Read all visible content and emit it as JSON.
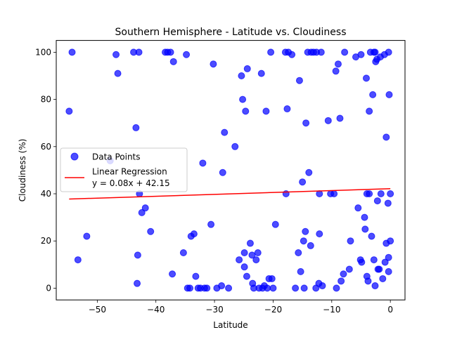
{
  "chart_data": {
    "type": "scatter",
    "title": "Southern Hemisphere - Latitude vs. Cloudiness",
    "xlabel": "Latitude",
    "ylabel": "Cloudiness (%)",
    "xlim": [
      -57,
      2.5
    ],
    "ylim": [
      -5,
      105
    ],
    "xticks": [
      -50,
      -40,
      -30,
      -20,
      -10,
      0
    ],
    "yticks": [
      0,
      20,
      40,
      60,
      80,
      100
    ],
    "grid": false,
    "legend": {
      "placement": "center-left",
      "entries": [
        {
          "label": "Data Points",
          "type": "marker"
        },
        {
          "label": "Linear Regression",
          "label2": "y = 0.08x + 42.15",
          "type": "line"
        }
      ]
    },
    "colors": {
      "points": "#0000ff",
      "regression": "#ff0000"
    },
    "regression": {
      "slope": 0.08,
      "intercept": 42.15,
      "x_range": [
        -54.8,
        0
      ]
    },
    "series": [
      {
        "name": "Data Points",
        "points": [
          [
            -54.8,
            75
          ],
          [
            -54.3,
            100
          ],
          [
            -53.3,
            12
          ],
          [
            -51.8,
            22
          ],
          [
            -47.8,
            54
          ],
          [
            -46.8,
            99
          ],
          [
            -46.5,
            91
          ],
          [
            -43.8,
            100
          ],
          [
            -43.4,
            68
          ],
          [
            -43.2,
            2
          ],
          [
            -43.1,
            14
          ],
          [
            -42.9,
            100
          ],
          [
            -42.8,
            40
          ],
          [
            -42.4,
            32
          ],
          [
            -41.8,
            34
          ],
          [
            -40.9,
            24
          ],
          [
            -38.4,
            100
          ],
          [
            -38.0,
            100
          ],
          [
            -37.5,
            100
          ],
          [
            -37.2,
            6
          ],
          [
            -37.0,
            96
          ],
          [
            -35.3,
            15
          ],
          [
            -34.8,
            99
          ],
          [
            -34.6,
            0
          ],
          [
            -34.2,
            0
          ],
          [
            -34.0,
            22
          ],
          [
            -33.5,
            23
          ],
          [
            -33.2,
            5
          ],
          [
            -32.8,
            0
          ],
          [
            -32.4,
            0
          ],
          [
            -32.0,
            53
          ],
          [
            -31.7,
            0
          ],
          [
            -31.3,
            0
          ],
          [
            -30.6,
            27
          ],
          [
            -30.2,
            95
          ],
          [
            -29.6,
            0
          ],
          [
            -28.8,
            1
          ],
          [
            -28.6,
            49
          ],
          [
            -28.3,
            66
          ],
          [
            -27.6,
            0
          ],
          [
            -26.5,
            60
          ],
          [
            -25.8,
            12
          ],
          [
            -25.4,
            90
          ],
          [
            -25.2,
            80
          ],
          [
            -24.9,
            15
          ],
          [
            -24.9,
            9
          ],
          [
            -24.7,
            75
          ],
          [
            -24.5,
            5
          ],
          [
            -24.4,
            93
          ],
          [
            -23.9,
            19
          ],
          [
            -23.6,
            14
          ],
          [
            -23.5,
            2
          ],
          [
            -23.3,
            0
          ],
          [
            -22.9,
            12
          ],
          [
            -22.6,
            15
          ],
          [
            -22.4,
            0
          ],
          [
            -22.0,
            91
          ],
          [
            -21.8,
            0
          ],
          [
            -21.5,
            1
          ],
          [
            -21.2,
            75
          ],
          [
            -21.0,
            0
          ],
          [
            -20.7,
            4
          ],
          [
            -20.4,
            100
          ],
          [
            -20.2,
            4
          ],
          [
            -20.0,
            0
          ],
          [
            -19.6,
            27
          ],
          [
            -17.9,
            100
          ],
          [
            -17.8,
            40
          ],
          [
            -17.6,
            76
          ],
          [
            -17.4,
            100
          ],
          [
            -16.8,
            99
          ],
          [
            -16.2,
            0
          ],
          [
            -15.7,
            15
          ],
          [
            -15.5,
            88
          ],
          [
            -15.3,
            7
          ],
          [
            -15.0,
            45
          ],
          [
            -14.8,
            20
          ],
          [
            -14.7,
            0
          ],
          [
            -14.4,
            70
          ],
          [
            -14.5,
            24
          ],
          [
            -14.1,
            100
          ],
          [
            -13.9,
            49
          ],
          [
            -13.6,
            18
          ],
          [
            -13.5,
            100
          ],
          [
            -13.1,
            100
          ],
          [
            -12.7,
            0
          ],
          [
            -12.6,
            100
          ],
          [
            -12.2,
            2
          ],
          [
            -12.1,
            40
          ],
          [
            -12.1,
            23
          ],
          [
            -11.8,
            100
          ],
          [
            -11.6,
            1
          ],
          [
            -10.6,
            71
          ],
          [
            -10.2,
            40
          ],
          [
            -9.6,
            40
          ],
          [
            -9.3,
            92
          ],
          [
            -9.2,
            0
          ],
          [
            -8.9,
            95
          ],
          [
            -8.6,
            72
          ],
          [
            -8.4,
            3
          ],
          [
            -8.0,
            6
          ],
          [
            -7.8,
            100
          ],
          [
            -7.0,
            8
          ],
          [
            -6.8,
            20
          ],
          [
            -5.9,
            98
          ],
          [
            -5.5,
            34
          ],
          [
            -5.1,
            12
          ],
          [
            -4.9,
            11
          ],
          [
            -5.0,
            99
          ],
          [
            -4.4,
            30
          ],
          [
            -4.3,
            25
          ],
          [
            -4.1,
            89
          ],
          [
            -4.0,
            40
          ],
          [
            -4.0,
            5
          ],
          [
            -3.8,
            3
          ],
          [
            -3.6,
            40
          ],
          [
            -3.6,
            75
          ],
          [
            -3.4,
            100
          ],
          [
            -3.2,
            22
          ],
          [
            -3.0,
            82
          ],
          [
            -2.8,
            100
          ],
          [
            -2.6,
            100
          ],
          [
            -2.8,
            12
          ],
          [
            -2.6,
            1
          ],
          [
            -2.5,
            96
          ],
          [
            -2.3,
            97
          ],
          [
            -2.2,
            37
          ],
          [
            -2.1,
            8
          ],
          [
            -1.9,
            8
          ],
          [
            -1.7,
            98
          ],
          [
            -1.6,
            40
          ],
          [
            -1.3,
            4
          ],
          [
            -1.0,
            99
          ],
          [
            -0.9,
            11
          ],
          [
            -0.7,
            19
          ],
          [
            -0.7,
            64
          ],
          [
            -0.4,
            36
          ],
          [
            -0.3,
            100
          ],
          [
            -0.3,
            13
          ],
          [
            -0.3,
            7
          ],
          [
            -0.2,
            82
          ],
          [
            0.0,
            20
          ],
          [
            0.0,
            40
          ]
        ]
      }
    ]
  }
}
